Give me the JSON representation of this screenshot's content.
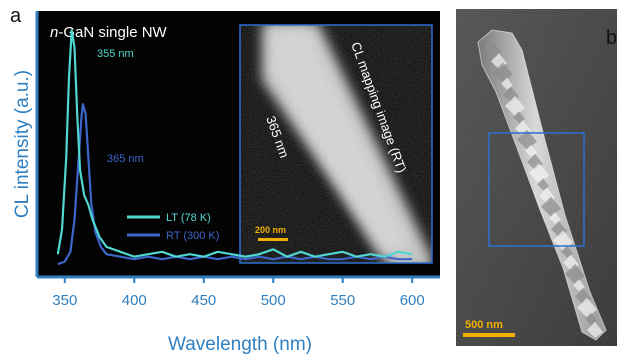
{
  "panel_a": {
    "letter": "a",
    "title_italic": "n",
    "title_rest": "-GaN single NW",
    "peak_lt_label": "355 nm",
    "peak_rt_label": "365 nm",
    "legend": [
      {
        "label": "LT (78 K)",
        "color": "#4fd7d0"
      },
      {
        "label": "RT (300 K)",
        "color": "#3c66c9"
      }
    ],
    "inset": {
      "title": "CL mapping image (RT)",
      "wavelength_label": "365 nm",
      "scale_bar": "200 nm"
    }
  },
  "panel_b": {
    "letter": "b",
    "scale_bar": "500 nm"
  },
  "colors": {
    "axis": "#2f7fc1",
    "lt": "#4fd7d0",
    "rt": "#3c66c9",
    "scale_bar": "#f2b000",
    "box": "#2d6fd3"
  },
  "chart_data": {
    "type": "line",
    "xlabel": "Wavelength (nm)",
    "ylabel": "CL intensity (a.u.)",
    "xlim": [
      330,
      620
    ],
    "ylim": [
      0,
      1
    ],
    "xticks": [
      350,
      400,
      450,
      500,
      550,
      600
    ],
    "series": [
      {
        "name": "LT (78 K)",
        "color": "#4fd7d0",
        "x": [
          345,
          348,
          351,
          353,
          355,
          357,
          359,
          361,
          364,
          367,
          370,
          375,
          380,
          390,
          400,
          410,
          420,
          430,
          440,
          450,
          460,
          470,
          480,
          490,
          500,
          510,
          520,
          530,
          540,
          550,
          560,
          570,
          580,
          590,
          600
        ],
        "y": [
          0.06,
          0.16,
          0.45,
          0.78,
          0.97,
          0.9,
          0.62,
          0.4,
          0.3,
          0.26,
          0.2,
          0.13,
          0.09,
          0.07,
          0.05,
          0.06,
          0.07,
          0.05,
          0.06,
          0.05,
          0.07,
          0.06,
          0.05,
          0.06,
          0.08,
          0.05,
          0.07,
          0.05,
          0.06,
          0.07,
          0.05,
          0.06,
          0.05,
          0.07,
          0.06
        ]
      },
      {
        "name": "RT (300 K)",
        "color": "#3c66c9",
        "x": [
          345,
          350,
          354,
          357,
          360,
          362,
          363,
          365,
          367,
          369,
          372,
          376,
          380,
          390,
          400,
          410,
          420,
          430,
          440,
          450,
          460,
          470,
          480,
          490,
          500,
          510,
          520,
          530,
          540,
          550,
          560,
          570,
          580,
          590,
          600
        ],
        "y": [
          0.02,
          0.03,
          0.07,
          0.2,
          0.45,
          0.62,
          0.67,
          0.63,
          0.45,
          0.27,
          0.15,
          0.09,
          0.06,
          0.05,
          0.04,
          0.05,
          0.04,
          0.05,
          0.04,
          0.05,
          0.04,
          0.05,
          0.04,
          0.05,
          0.04,
          0.05,
          0.04,
          0.05,
          0.04,
          0.04,
          0.05,
          0.04,
          0.05,
          0.04,
          0.04
        ]
      }
    ]
  }
}
